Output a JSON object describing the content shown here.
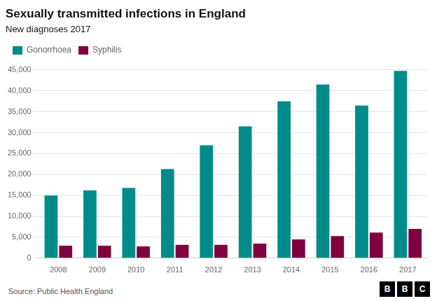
{
  "chart_data": {
    "type": "bar",
    "title": "Sexually transmitted infections in England",
    "subtitle": "New diagnoses 2017",
    "source": "Source: Public Health England",
    "annotations": [
      "BBC"
    ],
    "categories": [
      "2008",
      "2009",
      "2010",
      "2011",
      "2012",
      "2013",
      "2014",
      "2015",
      "2016",
      "2017"
    ],
    "series": [
      {
        "name": "Gonorrhoea",
        "color": "#008B8B",
        "values": [
          15000,
          16200,
          16800,
          21300,
          27000,
          31500,
          37500,
          41500,
          36500,
          44800
        ]
      },
      {
        "name": "Syphilis",
        "color": "#80003F",
        "values": [
          3000,
          3000,
          2800,
          3200,
          3200,
          3500,
          4500,
          5300,
          6100,
          7000
        ]
      }
    ],
    "ylim": [
      0,
      47000
    ],
    "yticks": [
      0,
      {
        "value": 5000,
        "label": "5,000"
      },
      {
        "value": 10000,
        "label": "10,000"
      },
      {
        "value": 15000,
        "label": "15,000"
      },
      {
        "value": 20000,
        "label": "20,000"
      },
      {
        "value": 25000,
        "label": "25,000"
      },
      {
        "value": 30000,
        "label": "30,000"
      },
      {
        "value": 35000,
        "label": "35,000"
      },
      {
        "value": 40000,
        "label": "40,000"
      },
      {
        "value": 45000,
        "label": "45,000"
      }
    ],
    "grid": true,
    "legend": "top-left"
  }
}
